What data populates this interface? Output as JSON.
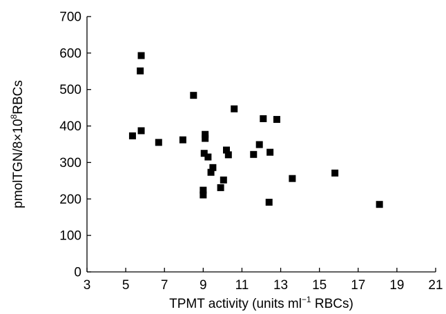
{
  "chart_data": {
    "type": "scatter",
    "title": "",
    "xlabel": {
      "prefix": "TPMT activity (units ml",
      "superscript": "−1",
      "suffix": " RBCs)"
    },
    "ylabel": {
      "prefix": "pmolTGN/8×10",
      "superscript": "8",
      "suffix": "RBCs"
    },
    "xlim": [
      3,
      21
    ],
    "ylim": [
      0,
      700
    ],
    "xticks": [
      3,
      5,
      7,
      9,
      11,
      13,
      15,
      17,
      19,
      21
    ],
    "yticks": [
      0,
      100,
      200,
      300,
      400,
      500,
      600,
      700
    ],
    "grid": false,
    "legend": "none",
    "marker": "square",
    "color": "#000000",
    "points": [
      {
        "x": 5.8,
        "y": 593
      },
      {
        "x": 5.75,
        "y": 551
      },
      {
        "x": 8.5,
        "y": 484
      },
      {
        "x": 10.6,
        "y": 447
      },
      {
        "x": 12.1,
        "y": 420
      },
      {
        "x": 12.8,
        "y": 418
      },
      {
        "x": 5.8,
        "y": 387
      },
      {
        "x": 5.35,
        "y": 373
      },
      {
        "x": 9.1,
        "y": 377
      },
      {
        "x": 9.1,
        "y": 366
      },
      {
        "x": 7.95,
        "y": 362
      },
      {
        "x": 6.7,
        "y": 355
      },
      {
        "x": 11.9,
        "y": 349
      },
      {
        "x": 10.2,
        "y": 334
      },
      {
        "x": 12.45,
        "y": 328
      },
      {
        "x": 9.05,
        "y": 325
      },
      {
        "x": 11.6,
        "y": 322
      },
      {
        "x": 10.3,
        "y": 321
      },
      {
        "x": 9.25,
        "y": 315
      },
      {
        "x": 9.5,
        "y": 286
      },
      {
        "x": 9.4,
        "y": 273
      },
      {
        "x": 15.8,
        "y": 271
      },
      {
        "x": 13.6,
        "y": 256
      },
      {
        "x": 10.05,
        "y": 252
      },
      {
        "x": 9.9,
        "y": 231
      },
      {
        "x": 9.0,
        "y": 224
      },
      {
        "x": 9.0,
        "y": 211
      },
      {
        "x": 12.4,
        "y": 191
      },
      {
        "x": 18.1,
        "y": 185
      }
    ]
  }
}
